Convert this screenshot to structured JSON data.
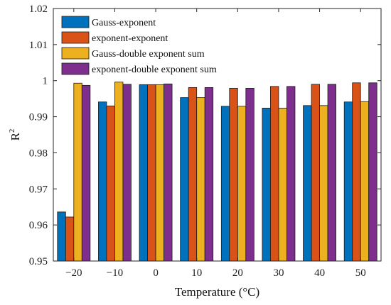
{
  "chart_data": {
    "type": "bar",
    "xlabel": "Temperature (°C)",
    "ylabel_base": "R",
    "ylabel_superscript": "2",
    "ylim": [
      0.95,
      1.02
    ],
    "yticks": [
      "0.95",
      "0.96",
      "0.97",
      "0.98",
      "0.99",
      "1",
      "1.01",
      "1.02"
    ],
    "categories": [
      "−20",
      "−10",
      "0",
      "10",
      "20",
      "30",
      "40",
      "50"
    ],
    "grid": false,
    "legend_position": "top-left",
    "series": [
      {
        "name": "Gauss-exponent",
        "color": "#0072BD",
        "values": [
          0.9636,
          0.9941,
          0.9989,
          0.9953,
          0.9929,
          0.9924,
          0.9931,
          0.9941
        ]
      },
      {
        "name": "exponent-exponent",
        "color": "#D95319",
        "values": [
          0.9622,
          0.993,
          0.9989,
          0.9981,
          0.9979,
          0.9984,
          0.999,
          0.9994
        ]
      },
      {
        "name": "Gauss-double exponent sum",
        "color": "#EDB120",
        "values": [
          0.9993,
          0.9996,
          0.9989,
          0.9953,
          0.9929,
          0.9924,
          0.9931,
          0.9942
        ]
      },
      {
        "name": "exponent-double exponent sum",
        "color": "#7E2F8E",
        "values": [
          0.9987,
          0.999,
          0.9991,
          0.9981,
          0.9979,
          0.9984,
          0.999,
          0.9994
        ]
      }
    ]
  }
}
